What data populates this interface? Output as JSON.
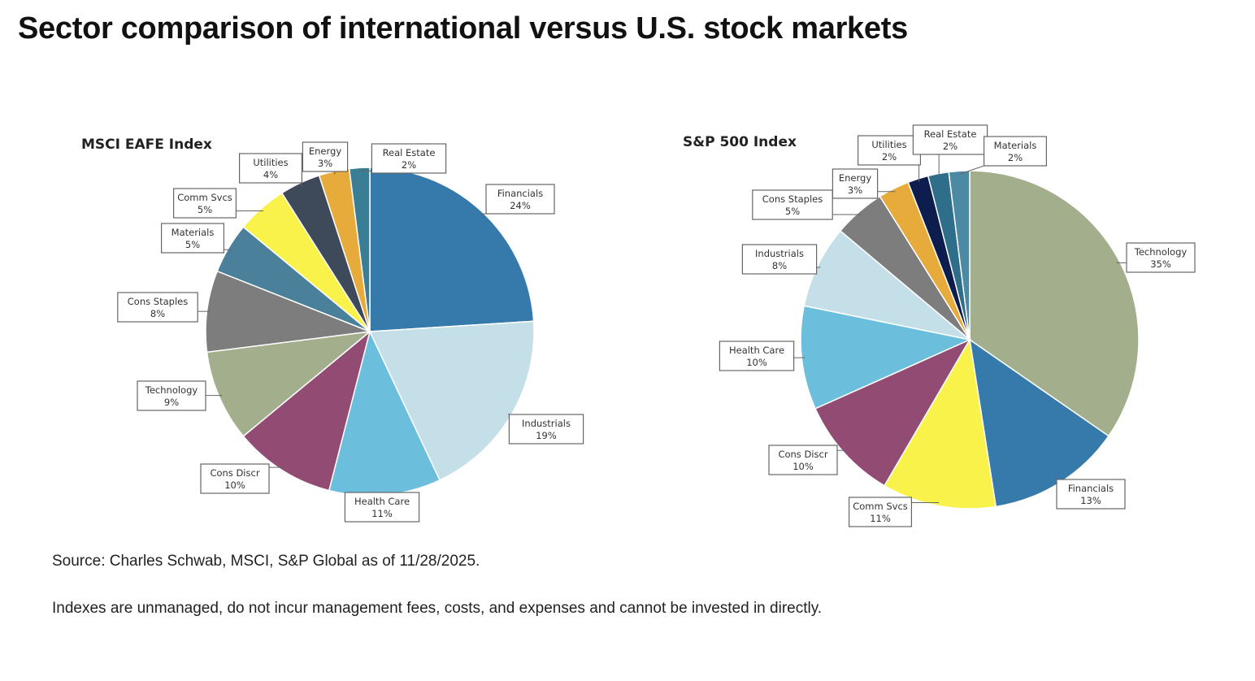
{
  "title": "Sector comparison of international versus U.S. stock markets",
  "source": "Source: Charles Schwab, MSCI, S&P Global as of 11/28/2025.",
  "disclaimer": "Indexes are unmanaged, do not incur management fees, costs, and expenses and cannot be invested in directly.",
  "chart_data": [
    {
      "type": "pie",
      "title": "MSCI EAFE Index",
      "slices": [
        {
          "label": "Financials",
          "value": 24,
          "value_label": "24%",
          "color": "#357aab"
        },
        {
          "label": "Industrials",
          "value": 19,
          "value_label": "19%",
          "color": "#c5dfe8"
        },
        {
          "label": "Health Care",
          "value": 11,
          "value_label": "11%",
          "color": "#6bbfdc"
        },
        {
          "label": "Cons Discr",
          "value": 10,
          "value_label": "10%",
          "color": "#924b73"
        },
        {
          "label": "Technology",
          "value": 9,
          "value_label": "9%",
          "color": "#a2ae8c"
        },
        {
          "label": "Cons Staples",
          "value": 8,
          "value_label": "8%",
          "color": "#7d7d7d"
        },
        {
          "label": "Materials",
          "value": 5,
          "value_label": "5%",
          "color": "#4a8099"
        },
        {
          "label": "Comm Svcs",
          "value": 5,
          "value_label": "5%",
          "color": "#f8f24a"
        },
        {
          "label": "Utilities",
          "value": 4,
          "value_label": "4%",
          "color": "#3e4a5a"
        },
        {
          "label": "Energy",
          "value": 3,
          "value_label": "3%",
          "color": "#e7ab3c"
        },
        {
          "label": "Real Estate",
          "value": 2,
          "value_label": "2%",
          "color": "#3a7e96"
        }
      ]
    },
    {
      "type": "pie",
      "title": "S&P 500 Index",
      "slices": [
        {
          "label": "Technology",
          "value": 35,
          "value_label": "35%",
          "color": "#a2ae8c"
        },
        {
          "label": "Financials",
          "value": 13,
          "value_label": "13%",
          "color": "#357aab"
        },
        {
          "label": "Comm Svcs",
          "value": 11,
          "value_label": "11%",
          "color": "#f8f24a"
        },
        {
          "label": "Cons Discr",
          "value": 10,
          "value_label": "10%",
          "color": "#924b73"
        },
        {
          "label": "Health Care",
          "value": 10,
          "value_label": "10%",
          "color": "#6bbfdc"
        },
        {
          "label": "Industrials",
          "value": 8,
          "value_label": "8%",
          "color": "#c5dfe8"
        },
        {
          "label": "Cons Staples",
          "value": 5,
          "value_label": "5%",
          "color": "#7d7d7d"
        },
        {
          "label": "Energy",
          "value": 3,
          "value_label": "3%",
          "color": "#e7ab3c"
        },
        {
          "label": "Utilities",
          "value": 2,
          "value_label": "2%",
          "color": "#0d1d4e"
        },
        {
          "label": "Real Estate",
          "value": 2,
          "value_label": "2%",
          "color": "#2f6e8a"
        },
        {
          "label": "Materials",
          "value": 2,
          "value_label": "2%",
          "color": "#4b8aa3"
        }
      ]
    }
  ]
}
